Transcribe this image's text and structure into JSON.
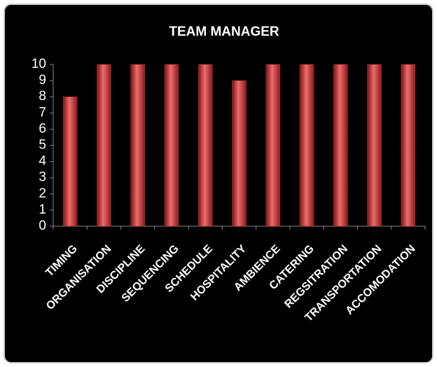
{
  "chart_data": {
    "type": "bar",
    "title": "TEAM MANAGER",
    "categories": [
      "TIMING",
      "ORGANISATION",
      "DISCIPLINE",
      "SEQUENCING",
      "SCHEDULE",
      "HOSPITALITY",
      "AMBIENCE",
      "CATERING",
      "REGSITRATION",
      "TRANSPORTATION",
      "ACCOMODATION"
    ],
    "values": [
      8,
      10,
      10,
      10,
      10,
      9,
      10,
      10,
      10,
      10,
      10
    ],
    "color": "#c0392b",
    "ylim": [
      0,
      10
    ],
    "yticks": [
      0,
      1,
      2,
      3,
      4,
      5,
      6,
      7,
      8,
      9,
      10
    ],
    "grid": false
  }
}
